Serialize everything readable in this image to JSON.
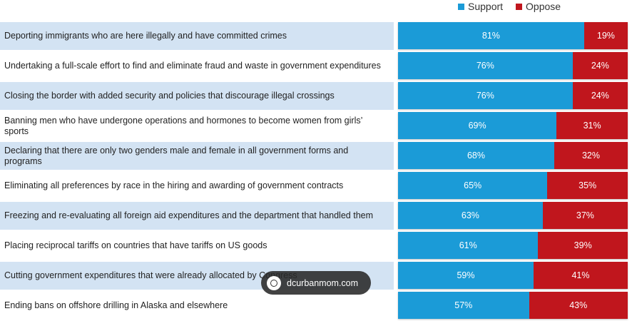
{
  "legend": {
    "support_label": "Support",
    "oppose_label": "Oppose"
  },
  "colors": {
    "support": "#1b9bd7",
    "oppose": "#c0161d",
    "row_stripe": "#d3e3f3"
  },
  "watermark": {
    "text": "dcurbanmom.com",
    "icon": "globe-icon"
  },
  "chart_data": {
    "type": "bar",
    "orientation": "horizontal",
    "stacked": true,
    "value_unit": "%",
    "categories": [
      "Deporting immigrants who are here illegally and have committed crimes",
      "Undertaking a full-scale effort to find and eliminate fraud and waste in government expenditures",
      "Closing the border with added security and policies that discourage illegal crossings",
      "Banning men who have undergone operations and hormones to become women from girls’ sports",
      "Declaring that there are only two genders male and female in all government forms and programs",
      "Eliminating all preferences by race in the hiring and awarding of government contracts",
      "Freezing and re-evaluating all foreign aid expenditures and the department that handled them",
      "Placing reciprocal tariffs on countries that have tariffs on US goods",
      "Cutting government expenditures that were already allocated by Congress",
      "Ending bans on offshore drilling in Alaska and elsewhere"
    ],
    "series": [
      {
        "name": "Support",
        "values": [
          81,
          76,
          76,
          69,
          68,
          65,
          63,
          61,
          59,
          57
        ]
      },
      {
        "name": "Oppose",
        "values": [
          19,
          24,
          24,
          31,
          32,
          35,
          37,
          39,
          41,
          43
        ]
      }
    ],
    "xlim": [
      0,
      100
    ],
    "legend_position": "top-right",
    "grid": false
  }
}
